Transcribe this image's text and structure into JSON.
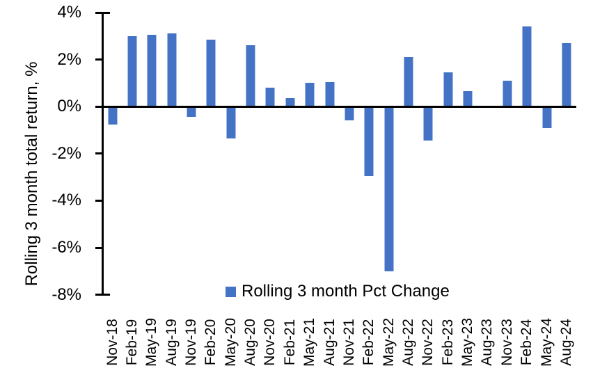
{
  "chart_data": {
    "type": "bar",
    "title": "",
    "xlabel": "",
    "ylabel": "Rolling 3 month total return, %",
    "ylim": [
      -8,
      4
    ],
    "y_tick_values": [
      4,
      2,
      0,
      -2,
      -4,
      -6,
      -8
    ],
    "y_tick_labels": [
      "4%",
      "2%",
      "0%",
      "-2%",
      "-4%",
      "-6%",
      "-8%"
    ],
    "grid": false,
    "legend": [
      "Rolling 3 month Pct Change"
    ],
    "legend_position": "bottom-center",
    "series_name": "Rolling 3 month Pct Change",
    "categories": [
      "Nov-18",
      "Feb-19",
      "May-19",
      "Aug-19",
      "Nov-19",
      "Feb-20",
      "May-20",
      "Aug-20",
      "Nov-20",
      "Feb-21",
      "May-21",
      "Aug-21",
      "Nov-21",
      "Feb-22",
      "May-22",
      "Aug-22",
      "Nov-22",
      "Feb-23",
      "May-23",
      "Aug-23",
      "Nov-23",
      "Feb-24",
      "May-24",
      "Aug-24"
    ],
    "values": [
      -0.75,
      3.0,
      3.05,
      3.1,
      -0.45,
      2.85,
      -1.35,
      2.6,
      0.8,
      0.35,
      1.0,
      1.05,
      -0.6,
      -2.95,
      -7.0,
      2.1,
      -1.45,
      1.45,
      0.65,
      0.0,
      1.1,
      3.4,
      -0.9,
      2.7
    ]
  },
  "colors": {
    "bar_fill": "#4472C4",
    "bar_edge": "#a3bbe5",
    "axis": "#000000",
    "background": "#ffffff"
  }
}
